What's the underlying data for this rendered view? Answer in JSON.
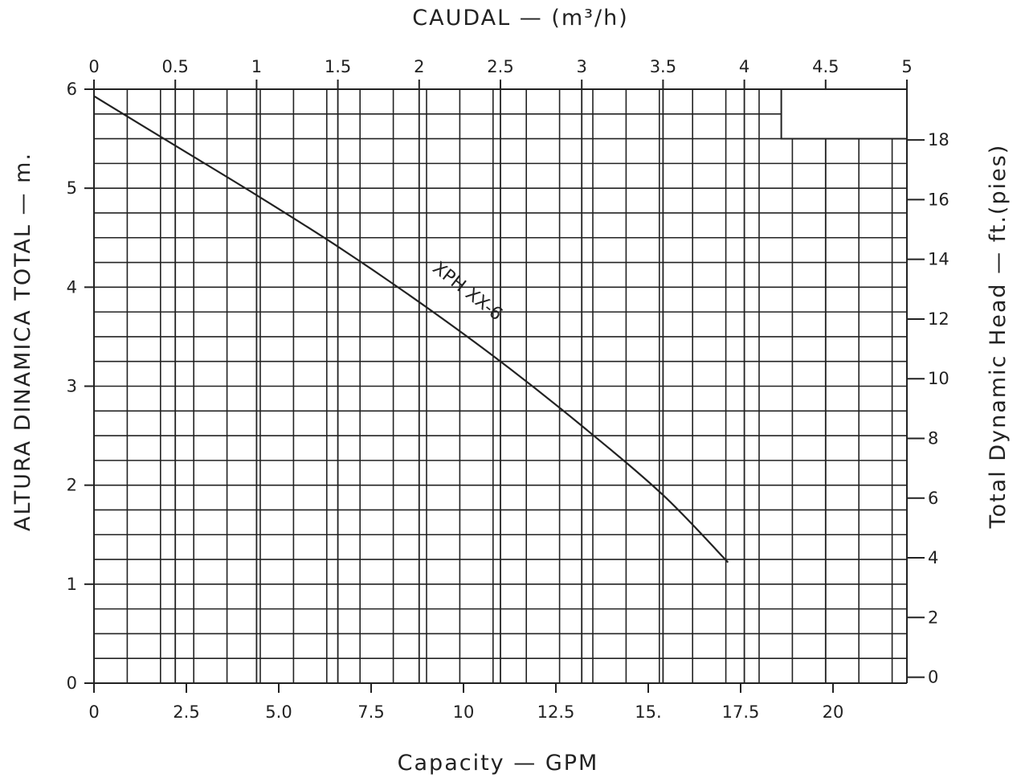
{
  "chart_data": {
    "type": "line",
    "title": "",
    "top_axis": {
      "label": "CAUDAL — (m³/h)",
      "range": [
        0,
        5
      ],
      "ticks": [
        {
          "value": 0,
          "label": "0"
        },
        {
          "value": 0.5,
          "label": "0.5"
        },
        {
          "value": 1,
          "label": "1"
        },
        {
          "value": 1.5,
          "label": "1.5"
        },
        {
          "value": 2,
          "label": "2"
        },
        {
          "value": 2.5,
          "label": "2.5"
        },
        {
          "value": 3,
          "label": "3"
        },
        {
          "value": 3.5,
          "label": "3.5"
        },
        {
          "value": 4,
          "label": "4"
        },
        {
          "value": 4.5,
          "label": "4.5"
        },
        {
          "value": 5,
          "label": "5"
        }
      ]
    },
    "bottom_axis": {
      "label": "Capacity — GPM",
      "range": [
        0,
        22.0
      ],
      "ticks": [
        {
          "value": 0,
          "label": "0"
        },
        {
          "value": 2.5,
          "label": "2.5"
        },
        {
          "value": 5,
          "label": "5.0"
        },
        {
          "value": 7.5,
          "label": "7.5"
        },
        {
          "value": 10,
          "label": "10"
        },
        {
          "value": 12.5,
          "label": "12.5"
        },
        {
          "value": 15,
          "label": "15."
        },
        {
          "value": 17.5,
          "label": "17.5"
        },
        {
          "value": 20,
          "label": "20"
        }
      ]
    },
    "left_axis": {
      "label": "ALTURA DINAMICA TOTAL — m.",
      "range": [
        0,
        6
      ],
      "ticks": [
        {
          "value": 0,
          "label": "0"
        },
        {
          "value": 1,
          "label": "1"
        },
        {
          "value": 2,
          "label": "2"
        },
        {
          "value": 3,
          "label": "3"
        },
        {
          "value": 4,
          "label": "4"
        },
        {
          "value": 5,
          "label": "5"
        },
        {
          "value": 6,
          "label": "6"
        }
      ]
    },
    "right_axis": {
      "label": "Total Dynamic Head — ft.(pies)",
      "range": [
        -0.2,
        19.7
      ],
      "ticks": [
        {
          "value": 0,
          "label": "0"
        },
        {
          "value": 2,
          "label": "2"
        },
        {
          "value": 4,
          "label": "4"
        },
        {
          "value": 6,
          "label": "6"
        },
        {
          "value": 8,
          "label": "8"
        },
        {
          "value": 10,
          "label": "10"
        },
        {
          "value": 12,
          "label": "12"
        },
        {
          "value": 14,
          "label": "14"
        },
        {
          "value": 16,
          "label": "16"
        },
        {
          "value": 18,
          "label": "18"
        }
      ]
    },
    "grid": true,
    "grid_minor": {
      "x_step_gpm": 0.9,
      "y_step_m": 0.25
    },
    "series": [
      {
        "name": "XPH XX-6",
        "x_units": "m³/h",
        "y_units": "m",
        "points": [
          {
            "x": 0,
            "y": 5.93
          },
          {
            "x": 0.5,
            "y": 5.43
          },
          {
            "x": 1.0,
            "y": 4.93
          },
          {
            "x": 1.5,
            "y": 4.41
          },
          {
            "x": 2.0,
            "y": 3.85
          },
          {
            "x": 2.5,
            "y": 3.25
          },
          {
            "x": 3.0,
            "y": 2.6
          },
          {
            "x": 3.5,
            "y": 1.9
          },
          {
            "x": 3.9,
            "y": 1.22
          }
        ]
      }
    ],
    "inset_box": {
      "x_from": 18.6,
      "x_to": 22.0,
      "y_from": 5.5,
      "y_to": 6.0
    }
  }
}
